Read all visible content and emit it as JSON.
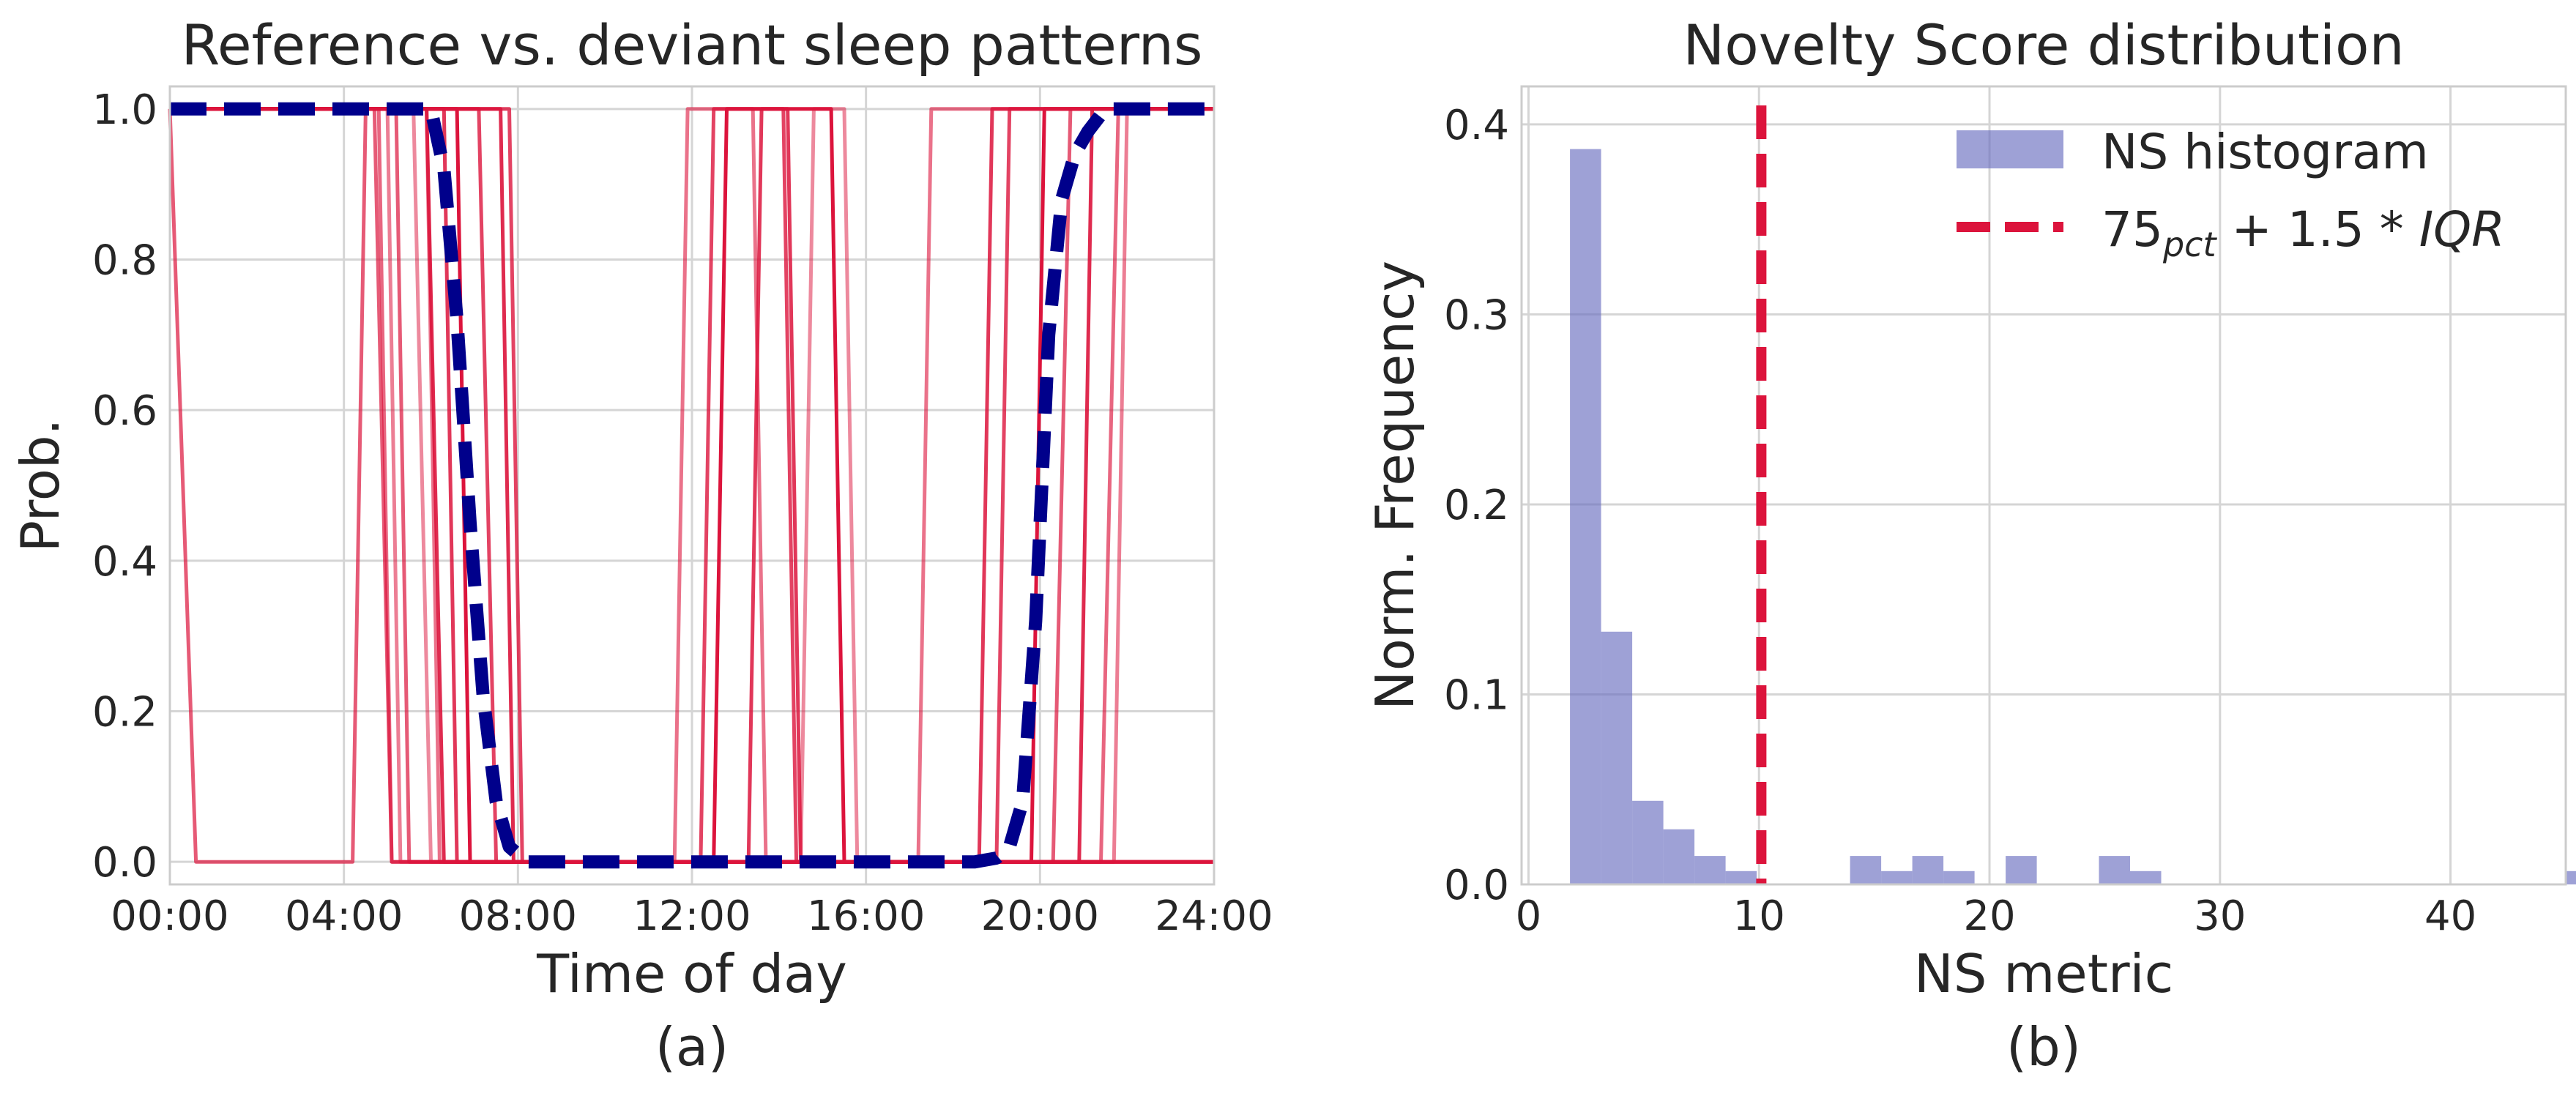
{
  "chart_data": [
    {
      "type": "line",
      "title": "Reference vs. deviant sleep patterns",
      "xlabel": "Time of day",
      "ylabel": "Prob.",
      "caption": "(a)",
      "x_ticks": [
        "00:00",
        "04:00",
        "08:00",
        "12:00",
        "16:00",
        "20:00",
        "24:00"
      ],
      "y_ticks": [
        "0.0",
        "0.2",
        "0.4",
        "0.6",
        "0.8",
        "1.0"
      ],
      "xlim_hours": [
        0,
        24
      ],
      "ylim": [
        -0.03,
        1.03
      ],
      "grid": true,
      "colors": {
        "reference": "#00008b",
        "deviant": "#dc143c"
      },
      "reference_series": {
        "style": "dashed",
        "x": [
          0,
          5.6,
          6.0,
          6.3,
          6.6,
          6.9,
          7.2,
          7.5,
          7.8,
          8.2,
          9,
          12,
          16,
          18.5,
          19.0,
          19.3,
          19.6,
          19.9,
          20.2,
          20.5,
          20.8,
          21.1,
          21.5,
          22,
          24
        ],
        "y": [
          1,
          1,
          1,
          0.92,
          0.72,
          0.45,
          0.22,
          0.08,
          0.02,
          0,
          0,
          0,
          0,
          0,
          0.005,
          0.02,
          0.08,
          0.32,
          0.7,
          0.88,
          0.94,
          0.97,
          1,
          1,
          1
        ]
      },
      "deviant_series": [
        {
          "opacity": 0.7,
          "x": [
            0,
            0.6,
            4.2,
            4.5,
            4.7,
            5.1,
            5.5,
            24
          ],
          "y": [
            1,
            0,
            0,
            1,
            1,
            0,
            0,
            0
          ]
        },
        {
          "opacity": 0.9,
          "x": [
            0,
            5.9,
            6.3,
            7.4,
            7.7,
            8.8,
            24
          ],
          "y": [
            1,
            1,
            0,
            0,
            0,
            0,
            0
          ]
        },
        {
          "opacity": 1.0,
          "x": [
            0,
            6.6,
            6.9,
            12.5,
            12.8,
            15.2,
            15.5,
            19.8,
            20.1,
            24
          ],
          "y": [
            1,
            1,
            0,
            0,
            1,
            1,
            0,
            0,
            1,
            1
          ]
        },
        {
          "opacity": 0.8,
          "x": [
            0,
            7.1,
            7.5,
            8.3,
            9.0,
            12.2,
            12.5,
            14.1,
            14.4,
            24
          ],
          "y": [
            1,
            1,
            0,
            0,
            0,
            0,
            1,
            1,
            0,
            0
          ]
        },
        {
          "opacity": 0.6,
          "x": [
            0,
            5.9,
            6.2,
            11.6,
            11.9,
            13.4,
            13.7,
            17.2,
            17.5,
            24
          ],
          "y": [
            1,
            1,
            0,
            0,
            1,
            1,
            0,
            0,
            1,
            1
          ]
        },
        {
          "opacity": 0.5,
          "x": [
            0,
            5.6,
            6.0,
            14.5,
            14.8,
            15.5,
            15.8,
            24
          ],
          "y": [
            1,
            1,
            0,
            0,
            1,
            1,
            0,
            0
          ]
        },
        {
          "opacity": 0.85,
          "x": [
            0,
            6.3,
            6.6,
            13.3,
            13.6,
            14.2,
            14.5,
            18.6,
            18.9,
            24
          ],
          "y": [
            1,
            1,
            0,
            0,
            1,
            1,
            0,
            0,
            1,
            1
          ]
        },
        {
          "opacity": 0.7,
          "x": [
            0,
            5.2,
            5.5,
            20.3,
            20.7,
            24
          ],
          "y": [
            1,
            1,
            0,
            0,
            1,
            1
          ]
        },
        {
          "opacity": 0.9,
          "x": [
            0,
            7.6,
            7.9,
            20.9,
            21.2,
            24
          ],
          "y": [
            1,
            1,
            0,
            0,
            1,
            1
          ]
        },
        {
          "opacity": 0.65,
          "x": [
            0,
            4.8,
            5.1,
            21.4,
            21.8,
            24
          ],
          "y": [
            1,
            1,
            0,
            0,
            1,
            1
          ]
        },
        {
          "opacity": 0.55,
          "x": [
            0,
            5.0,
            5.3,
            21.7,
            22.0,
            24
          ],
          "y": [
            1,
            1,
            0,
            0,
            1,
            1
          ]
        },
        {
          "opacity": 0.8,
          "x": [
            0,
            7.8,
            8.1,
            17.5,
            17.8,
            19.0,
            19.3,
            24
          ],
          "y": [
            1,
            1,
            0,
            0,
            0,
            0,
            1,
            1
          ]
        }
      ]
    },
    {
      "type": "bar",
      "title": "Novelty Score distribution",
      "xlabel": "NS metric",
      "ylabel": "Norm. Frequency",
      "caption": "(b)",
      "x_ticks": [
        0,
        10,
        20,
        30,
        40
      ],
      "y_ticks": [
        "0.0",
        "0.1",
        "0.2",
        "0.3",
        "0.4"
      ],
      "xlim": [
        -0.3,
        45.0
      ],
      "ylim": [
        0,
        0.42
      ],
      "grid": true,
      "legend_placement": "top-right",
      "bar_color": "#6a6fc0",
      "threshold_color": "#dc143c",
      "bin_width": 1.35,
      "bin_start": 1.8,
      "values": [
        0.387,
        0.133,
        0.044,
        0.029,
        0.015,
        0.007,
        0,
        0,
        0,
        0.015,
        0.007,
        0.015,
        0.007,
        0,
        0.015,
        0,
        0,
        0.015,
        0.007,
        0,
        0,
        0,
        0,
        0,
        0,
        0,
        0,
        0,
        0,
        0,
        0,
        0,
        0.007
      ],
      "threshold": 10.1,
      "legend": {
        "histogram": "NS histogram",
        "threshold_main": "75",
        "threshold_sub": "pct",
        "threshold_rest": " + 1.5 * ",
        "threshold_iqr": "IQR"
      }
    }
  ]
}
